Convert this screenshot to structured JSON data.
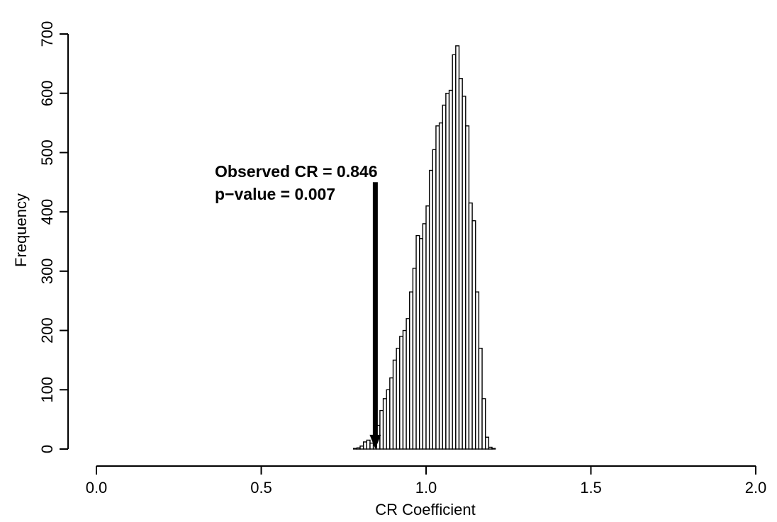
{
  "chart_data": {
    "type": "bar",
    "title": "",
    "xlabel": "CR Coefficient",
    "ylabel": "Frequency",
    "xlim": [
      0.0,
      2.0
    ],
    "ylim": [
      0,
      700
    ],
    "xticks": [
      0.0,
      0.5,
      1.0,
      1.5,
      2.0
    ],
    "xtick_labels": [
      "0.0",
      "0.5",
      "1.0",
      "1.5",
      "2.0"
    ],
    "yticks": [
      0,
      100,
      200,
      300,
      400,
      500,
      600,
      700
    ],
    "ytick_labels": [
      "0",
      "100",
      "200",
      "300",
      "400",
      "500",
      "600",
      "700"
    ],
    "grid": false,
    "legend": "none",
    "bin_width": 0.01,
    "bin_start": 0.77,
    "values": [
      0,
      1,
      2,
      5,
      12,
      15,
      10,
      20,
      40,
      65,
      85,
      100,
      120,
      150,
      170,
      190,
      200,
      220,
      265,
      305,
      360,
      355,
      380,
      410,
      470,
      505,
      545,
      550,
      580,
      600,
      605,
      665,
      680,
      625,
      595,
      545,
      415,
      385,
      265,
      170,
      85,
      20,
      3,
      1
    ],
    "annotations": [
      {
        "text": "Observed CR = 0.846",
        "x": 0.846
      },
      {
        "text": "p−value = 0.007"
      }
    ],
    "observed_value": 0.846,
    "arrow_top_value": 450,
    "arrow_bottom_value": 5
  }
}
